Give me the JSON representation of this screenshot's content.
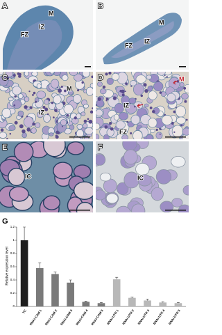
{
  "panels": [
    {
      "label": "A",
      "annotations": [
        "M",
        "IZ",
        "FZ"
      ]
    },
    {
      "label": "B",
      "annotations": [
        "M",
        "IZ",
        "FZ"
      ]
    },
    {
      "label": "C",
      "annotations": [
        "M",
        "IZ"
      ]
    },
    {
      "label": "D",
      "annotations": [
        "M",
        "IZ",
        "FZ"
      ]
    },
    {
      "label": "E",
      "annotations": [
        "IC"
      ]
    },
    {
      "label": "F",
      "annotations": [
        "IC"
      ]
    }
  ],
  "chart_data": {
    "type": "bar",
    "panel_label": "G",
    "y_label": "Relative expression level",
    "categories": [
      "TC",
      "RNAi-CAM 1",
      "RNAi-CAM 2",
      "RNAi-CAM 3",
      "RNAi-CAM 4",
      "RNAi-CAM 5",
      "RNAi-UTR 1",
      "RNAi-UTR 2",
      "RNAi-UTR 3",
      "RNAi-UTR 4",
      "RNAi-UTR 5"
    ],
    "values": [
      1.0,
      0.58,
      0.49,
      0.36,
      0.07,
      0.05,
      0.41,
      0.13,
      0.09,
      0.06,
      0.05
    ],
    "errors": [
      0.2,
      0.08,
      0.03,
      0.04,
      0.01,
      0.01,
      0.03,
      0.01,
      0.02,
      0.01,
      0.01
    ],
    "colors": [
      "#1e1e1e",
      "#7a7a7a",
      "#7a7a7a",
      "#7a7a7a",
      "#7a7a7a",
      "#7a7a7a",
      "#b8b8b8",
      "#b8b8b8",
      "#b8b8b8",
      "#b8b8b8",
      "#b8b8b8"
    ],
    "ylim": [
      0,
      1.2
    ],
    "yticks": [
      0,
      0.2,
      0.4,
      0.6,
      0.8,
      1,
      1.2
    ]
  }
}
